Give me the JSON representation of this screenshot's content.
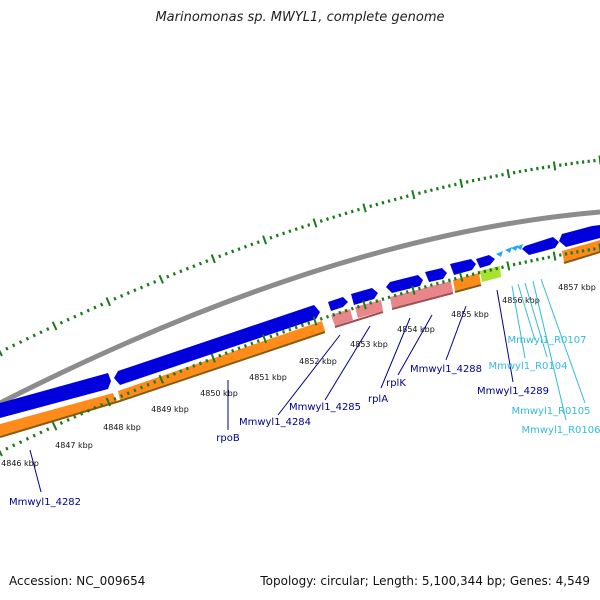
{
  "title": "Marinomonas sp. MWYL1, complete genome",
  "footer": {
    "accession": "Accession: NC_009654",
    "summary": "Topology: circular; Length: 5,100,344 bp; Genes: 4,549"
  },
  "colors": {
    "backbone": "#8c8c8c",
    "cds": "#0000dd",
    "gene": "#ff8c1a",
    "rrna": "#e8868a",
    "trna": "#22aaee",
    "tmrna": "#a6e22e",
    "tick": "#1a7a1a",
    "label_blue": "#00008b",
    "label_cyan": "#33bbdd"
  },
  "ticks": [
    {
      "text": "4846 kbp"
    },
    {
      "text": "4847 kbp"
    },
    {
      "text": "4848 kbp"
    },
    {
      "text": "4849 kbp"
    },
    {
      "text": "4850 kbp"
    },
    {
      "text": "4851 kbp"
    },
    {
      "text": "4852 kbp"
    },
    {
      "text": "4853 kbp"
    },
    {
      "text": "4854 kbp"
    },
    {
      "text": "4855 kbp"
    },
    {
      "text": "4856 kbp"
    },
    {
      "text": "4857 kbp"
    }
  ],
  "gene_labels": [
    {
      "text": "Mmwyl1_4282"
    },
    {
      "text": "rpoB"
    },
    {
      "text": "Mmwyl1_4284"
    },
    {
      "text": "Mmwyl1_4285"
    },
    {
      "text": "rplA"
    },
    {
      "text": "rplK"
    },
    {
      "text": "Mmwyl1_4288"
    },
    {
      "text": "Mmwyl1_4289"
    },
    {
      "text": "Mmwyl1_R0107"
    },
    {
      "text": "Mmwyl1_R0104"
    },
    {
      "text": "Mmwyl1_R0105"
    },
    {
      "text": "Mmwyl1_R0106"
    }
  ]
}
